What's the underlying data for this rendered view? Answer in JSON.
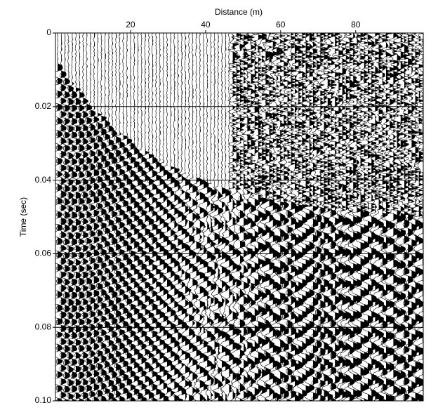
{
  "chart_data": {
    "type": "seismic",
    "x_label": "Distance (m)",
    "y_label": "Time (sec)",
    "xlim": [
      0,
      98
    ],
    "xticks": [
      20,
      40,
      60,
      80
    ],
    "ylim": [
      0,
      0.1
    ],
    "yticks": [
      0,
      0.02,
      0.04,
      0.06,
      0.08,
      {
        "value": 0.1,
        "label": "0.10"
      }
    ],
    "grid": true,
    "color": "#000000"
  }
}
